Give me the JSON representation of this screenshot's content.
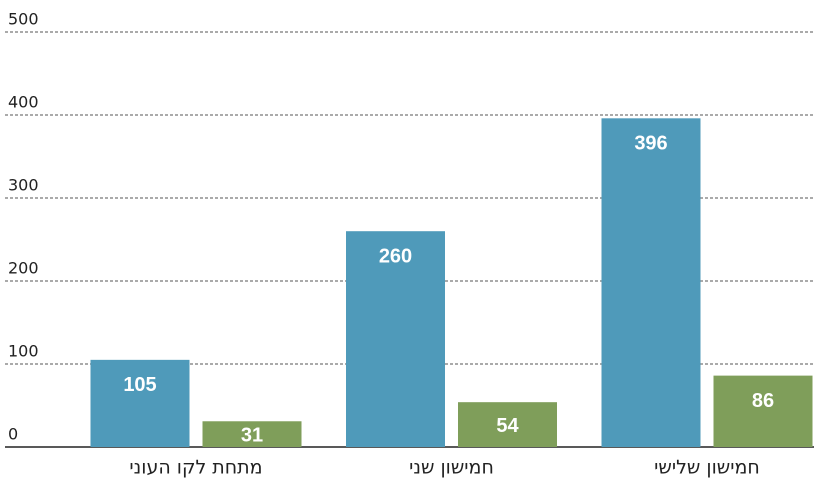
{
  "chart_data": {
    "type": "bar",
    "categories": [
      "מתחת לקו העוני",
      "חמישון שני",
      "חמישון שלישי"
    ],
    "series": [
      {
        "color": "#4f9aba",
        "values": [
          105,
          260,
          396
        ]
      },
      {
        "color": "#7f9e5a",
        "values": [
          31,
          54,
          86
        ]
      }
    ],
    "ylim": [
      0,
      500
    ],
    "yticks": [
      0,
      100,
      200,
      300,
      400,
      500
    ],
    "grid": true
  }
}
